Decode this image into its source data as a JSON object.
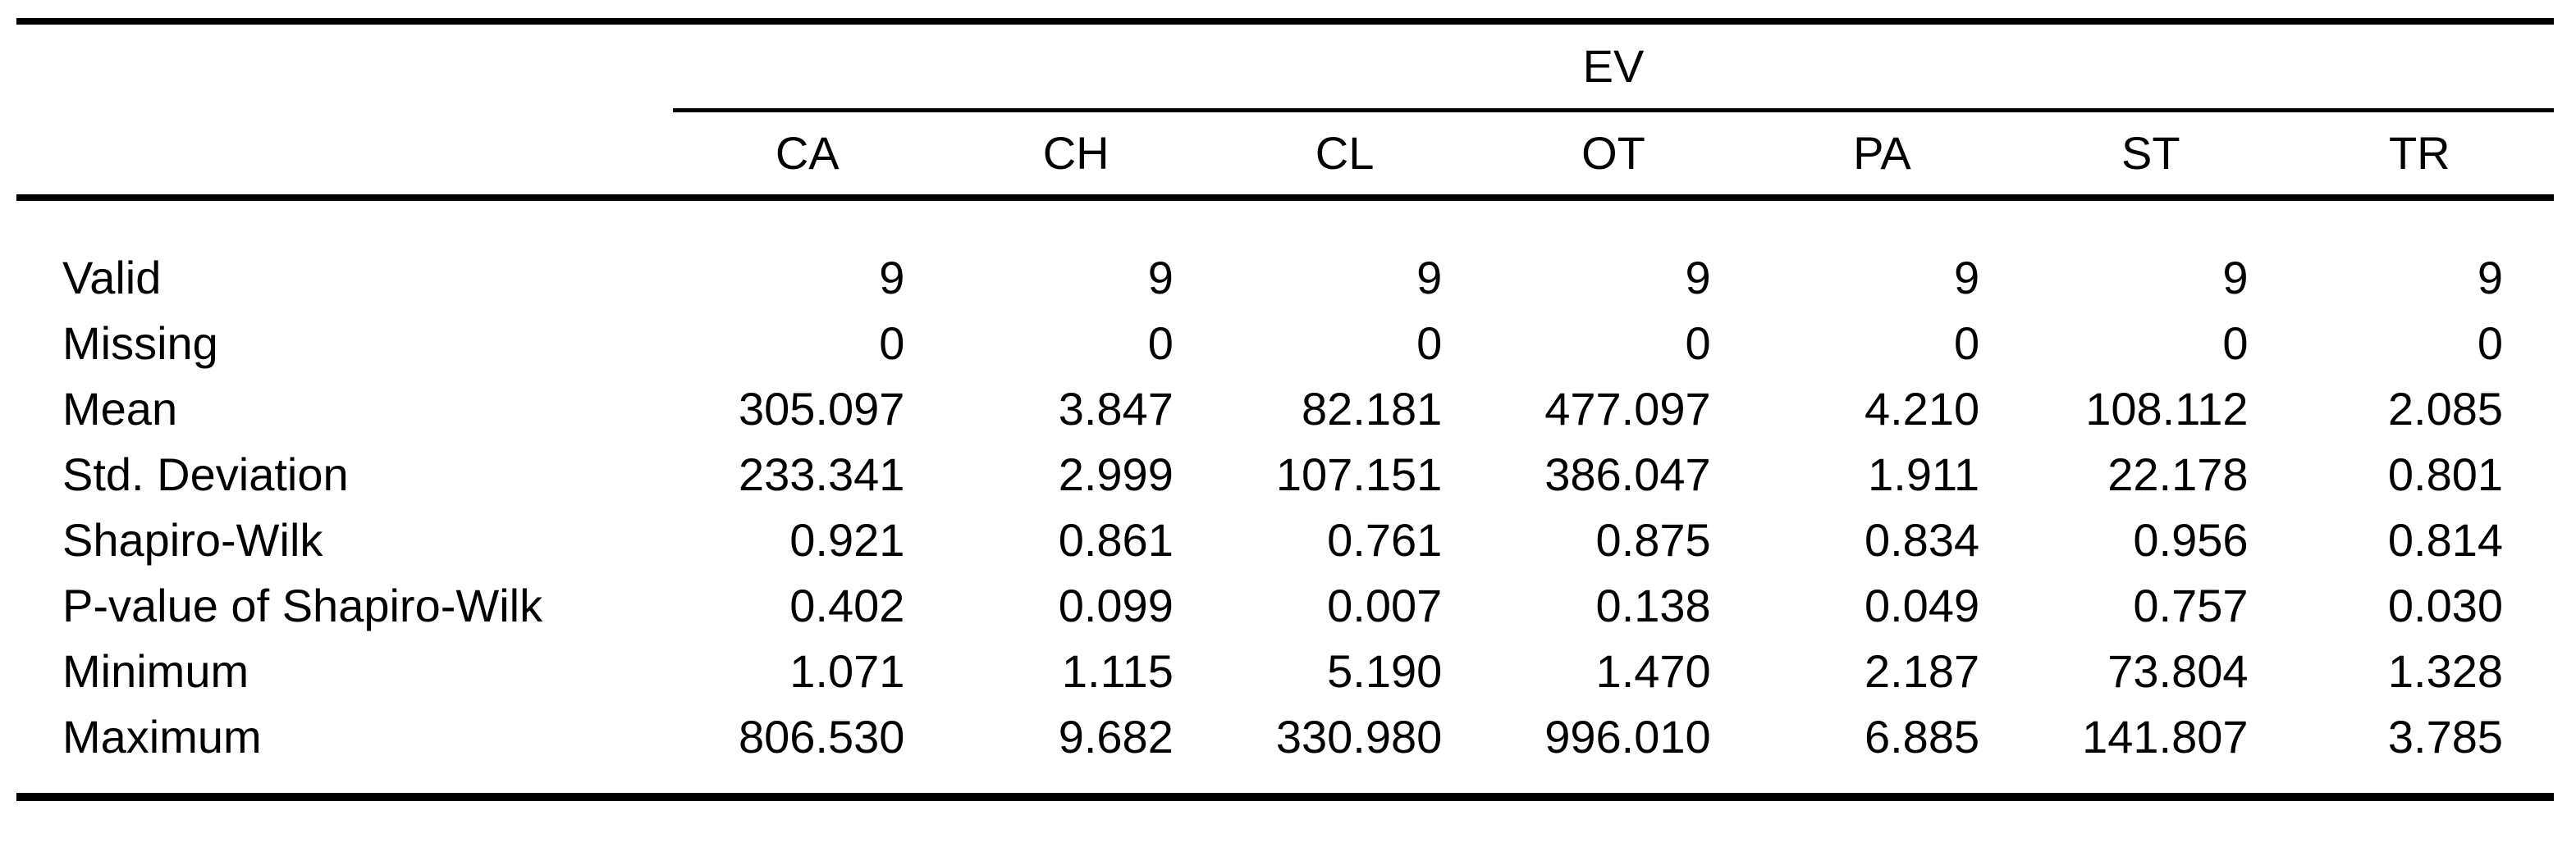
{
  "table": {
    "spanner_label": "EV",
    "columns": [
      "CA",
      "CH",
      "CL",
      "OT",
      "PA",
      "ST",
      "TR"
    ],
    "rows": [
      {
        "label": "Valid",
        "values": [
          "9",
          "9",
          "9",
          "9",
          "9",
          "9",
          "9"
        ]
      },
      {
        "label": "Missing",
        "values": [
          "0",
          "0",
          "0",
          "0",
          "0",
          "0",
          "0"
        ]
      },
      {
        "label": "Mean",
        "values": [
          "305.097",
          "3.847",
          "82.181",
          "477.097",
          "4.210",
          "108.112",
          "2.085"
        ]
      },
      {
        "label": "Std. Deviation",
        "values": [
          "233.341",
          "2.999",
          "107.151",
          "386.047",
          "1.911",
          "22.178",
          "0.801"
        ]
      },
      {
        "label": "Shapiro-Wilk",
        "values": [
          "0.921",
          "0.861",
          "0.761",
          "0.875",
          "0.834",
          "0.956",
          "0.814"
        ]
      },
      {
        "label": "P-value of Shapiro-Wilk",
        "values": [
          "0.402",
          "0.099",
          "0.007",
          "0.138",
          "0.049",
          "0.757",
          "0.030"
        ]
      },
      {
        "label": "Minimum",
        "values": [
          "1.071",
          "1.115",
          "5.190",
          "1.470",
          "2.187",
          "73.804",
          "1.328"
        ]
      },
      {
        "label": "Maximum",
        "values": [
          "806.530",
          "9.682",
          "330.980",
          "996.010",
          "6.885",
          "141.807",
          "3.785"
        ]
      }
    ]
  },
  "colors": {
    "text": "#000000",
    "background": "#ffffff",
    "rule": "#000000"
  }
}
